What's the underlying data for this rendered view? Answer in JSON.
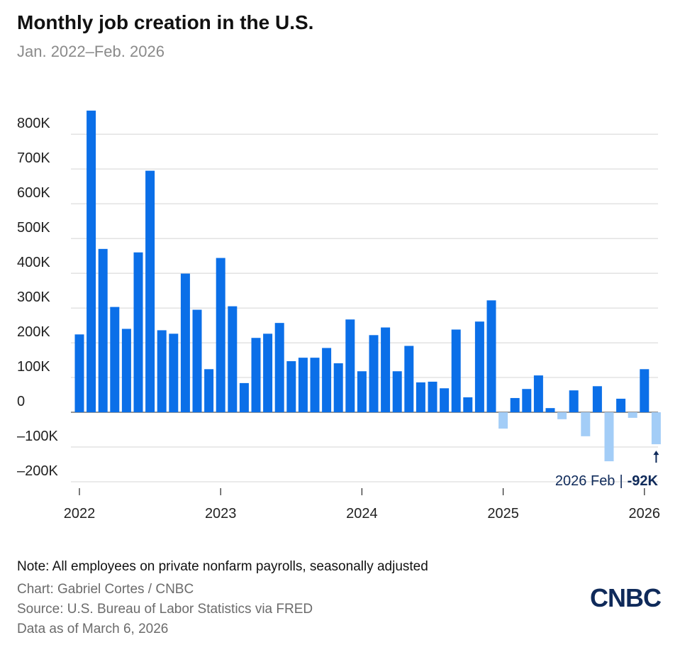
{
  "chart_data": {
    "type": "bar",
    "title": "Monthly job creation in the U.S.",
    "subtitle": "Jan. 2022–Feb. 2026",
    "categories": [
      "2022",
      null,
      null,
      null,
      null,
      null,
      null,
      null,
      null,
      null,
      null,
      null,
      "2023",
      null,
      null,
      null,
      null,
      null,
      null,
      null,
      null,
      null,
      null,
      null,
      "2024",
      null,
      null,
      null,
      null,
      null,
      null,
      null,
      null,
      null,
      null,
      null,
      "2025",
      null,
      null,
      null,
      null,
      null,
      null,
      null,
      null,
      null,
      null,
      null,
      "2026",
      null
    ],
    "values": [
      224,
      868,
      470,
      303,
      240,
      460,
      695,
      236,
      226,
      399,
      295,
      124,
      444,
      305,
      84,
      214,
      226,
      257,
      147,
      157,
      157,
      185,
      141,
      267,
      118,
      222,
      244,
      118,
      191,
      86,
      88,
      69,
      238,
      43,
      261,
      322,
      -47,
      41,
      67,
      106,
      12,
      -20,
      63,
      -69,
      75,
      -141,
      39,
      -16,
      124,
      -92
    ],
    "positive_color": "#0b6fe8",
    "negative_color": "#a3cdf7",
    "ylim": [
      -200,
      880
    ],
    "yticks": [
      {
        "value": -200,
        "label": "–200K"
      },
      {
        "value": -100,
        "label": "–100K"
      },
      0,
      {
        "value": 100,
        "label": "100K"
      },
      {
        "value": 200,
        "label": "200K"
      },
      {
        "value": 300,
        "label": "300K"
      },
      {
        "value": 400,
        "label": "400K"
      },
      {
        "value": 500,
        "label": "500K"
      },
      {
        "value": 600,
        "label": "600K"
      },
      {
        "value": 700,
        "label": "700K"
      },
      {
        "value": 800,
        "label": "800K"
      }
    ],
    "grid": true,
    "annotation": {
      "category": "2026 Feb",
      "separator": "|",
      "value_label": "-92K"
    },
    "note": "Note: All employees on private nonfarm payrolls, seasonally adjusted",
    "credit": "Chart: Gabriel Cortes / CNBC",
    "source": "Source: U.S. Bureau of Labor Statistics via FRED",
    "data_date": "Data as of March 6, 2026",
    "logo": "CNBC"
  }
}
